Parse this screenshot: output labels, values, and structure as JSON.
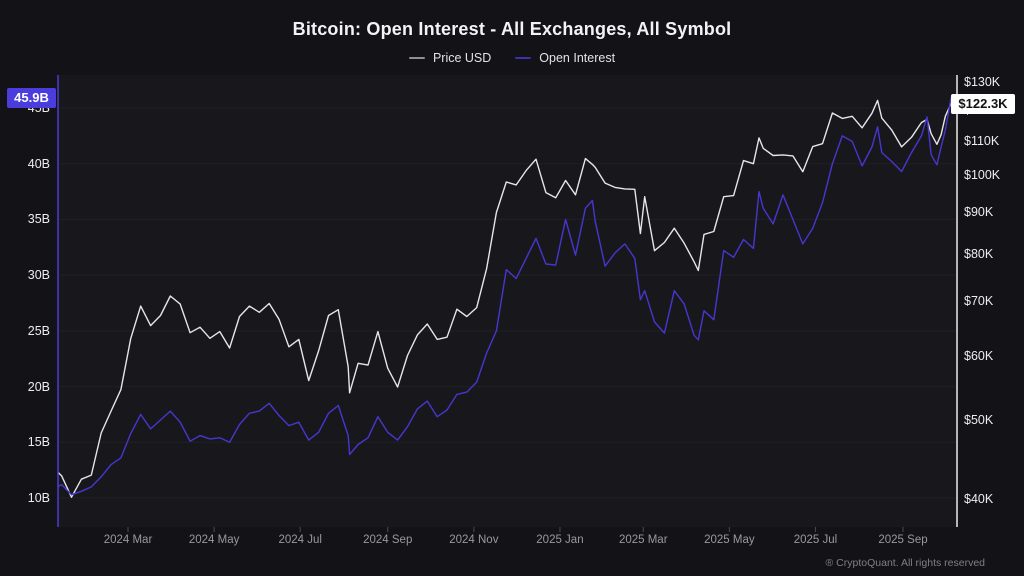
{
  "header": {
    "title": "Bitcoin: Open Interest - All Exchanges, All Symbol"
  },
  "legend": [
    {
      "label": "Price USD",
      "swatch_color": "#8f8f96"
    },
    {
      "label": "Open Interest",
      "swatch_color": "#3d32ad"
    }
  ],
  "watermark": "CryptoQuant",
  "footer": {
    "copyright": "® CryptoQuant. All rights reserved"
  },
  "badges": {
    "left": {
      "label": "45.9B",
      "value": 45.9,
      "bg": "#4a3ddb",
      "fg": "#ffffff"
    },
    "right": {
      "label": "$122.3K",
      "value": 122.3,
      "bg": "#ffffff",
      "fg": "#121215"
    }
  },
  "colors": {
    "background": "#131317",
    "plot_background": "#18181c",
    "gridline": "#1f1f24",
    "left_axis": "#4a3cd6",
    "right_axis": "#ebebee",
    "price_line": "#e6e6ea",
    "open_interest_line": "#4537cf"
  },
  "chart_data": {
    "type": "line",
    "title": "Bitcoin: Open Interest - All Exchanges, All Symbol",
    "legend_position": "top",
    "grid": "horizontal-faint",
    "x_range": [
      "2024-01-11",
      "2025-10-09"
    ],
    "x_axis": {
      "ticks": [
        {
          "label": "2024 Mar",
          "date": "2024-03-01"
        },
        {
          "label": "2024 May",
          "date": "2024-05-01"
        },
        {
          "label": "2024 Jul",
          "date": "2024-07-01"
        },
        {
          "label": "2024 Sep",
          "date": "2024-09-01"
        },
        {
          "label": "2024 Nov",
          "date": "2024-11-01"
        },
        {
          "label": "2025 Jan",
          "date": "2025-01-01"
        },
        {
          "label": "2025 Mar",
          "date": "2025-03-01"
        },
        {
          "label": "2025 May",
          "date": "2025-05-01"
        },
        {
          "label": "2025 Jul",
          "date": "2025-07-01"
        },
        {
          "label": "2025 Sep",
          "date": "2025-09-01"
        }
      ]
    },
    "y_left": {
      "name": "Open Interest",
      "unit": "billion USD",
      "scale": "linear",
      "range": [
        10,
        45
      ],
      "ticks": [
        {
          "label": "45B",
          "value": 45
        },
        {
          "label": "40B",
          "value": 40
        },
        {
          "label": "35B",
          "value": 35
        },
        {
          "label": "30B",
          "value": 30
        },
        {
          "label": "25B",
          "value": 25
        },
        {
          "label": "20B",
          "value": 20
        },
        {
          "label": "15B",
          "value": 15
        },
        {
          "label": "10B",
          "value": 10
        }
      ]
    },
    "y_right": {
      "name": "Price USD",
      "unit": "thousand USD",
      "scale": "log",
      "range": [
        40,
        130
      ],
      "ticks": [
        {
          "label": "$130K",
          "value": 130
        },
        {
          "label": "$120K",
          "value": 120
        },
        {
          "label": "$110K",
          "value": 110
        },
        {
          "label": "$100K",
          "value": 100
        },
        {
          "label": "$90K",
          "value": 90
        },
        {
          "label": "$80K",
          "value": 80
        },
        {
          "label": "$70K",
          "value": 70
        },
        {
          "label": "$60K",
          "value": 60
        },
        {
          "label": "$50K",
          "value": 50
        },
        {
          "label": "$40K",
          "value": 40
        }
      ]
    },
    "series": [
      {
        "name": "Price USD",
        "axis": "right",
        "color": "#e6e6ea",
        "unit": "K USD",
        "points": [
          [
            "2024-01-11",
            43.2
          ],
          [
            "2024-01-14",
            42.7
          ],
          [
            "2024-01-21",
            40.2
          ],
          [
            "2024-01-28",
            42.3
          ],
          [
            "2024-02-04",
            42.8
          ],
          [
            "2024-02-11",
            48.2
          ],
          [
            "2024-02-18",
            51.3
          ],
          [
            "2024-02-25",
            54.5
          ],
          [
            "2024-03-03",
            63.0
          ],
          [
            "2024-03-10",
            69.0
          ],
          [
            "2024-03-17",
            65.3
          ],
          [
            "2024-03-24",
            67.2
          ],
          [
            "2024-03-31",
            71.0
          ],
          [
            "2024-04-07",
            69.4
          ],
          [
            "2024-04-14",
            64.0
          ],
          [
            "2024-04-21",
            65.0
          ],
          [
            "2024-04-28",
            63.0
          ],
          [
            "2024-05-05",
            64.2
          ],
          [
            "2024-05-12",
            61.3
          ],
          [
            "2024-05-19",
            67.0
          ],
          [
            "2024-05-26",
            69.0
          ],
          [
            "2024-06-02",
            67.8
          ],
          [
            "2024-06-09",
            69.5
          ],
          [
            "2024-06-16",
            66.5
          ],
          [
            "2024-06-23",
            61.5
          ],
          [
            "2024-06-30",
            62.8
          ],
          [
            "2024-07-07",
            55.9
          ],
          [
            "2024-07-14",
            60.8
          ],
          [
            "2024-07-21",
            67.2
          ],
          [
            "2024-07-28",
            68.3
          ],
          [
            "2024-08-04",
            58.1
          ],
          [
            "2024-08-05",
            54.0
          ],
          [
            "2024-08-11",
            58.7
          ],
          [
            "2024-08-18",
            58.4
          ],
          [
            "2024-08-25",
            64.2
          ],
          [
            "2024-09-01",
            57.9
          ],
          [
            "2024-09-08",
            54.9
          ],
          [
            "2024-09-15",
            60.0
          ],
          [
            "2024-09-22",
            63.6
          ],
          [
            "2024-09-29",
            65.6
          ],
          [
            "2024-10-06",
            62.8
          ],
          [
            "2024-10-13",
            63.2
          ],
          [
            "2024-10-20",
            68.4
          ],
          [
            "2024-10-27",
            67.0
          ],
          [
            "2024-11-03",
            68.7
          ],
          [
            "2024-11-10",
            76.7
          ],
          [
            "2024-11-17",
            89.9
          ],
          [
            "2024-11-24",
            98.0
          ],
          [
            "2024-12-01",
            97.2
          ],
          [
            "2024-12-08",
            101.2
          ],
          [
            "2024-12-15",
            104.5
          ],
          [
            "2024-12-22",
            95.1
          ],
          [
            "2024-12-29",
            93.7
          ],
          [
            "2025-01-05",
            98.4
          ],
          [
            "2025-01-12",
            94.5
          ],
          [
            "2025-01-19",
            104.7
          ],
          [
            "2025-01-24",
            103.0
          ],
          [
            "2025-01-26",
            102.1
          ],
          [
            "2025-02-02",
            97.7
          ],
          [
            "2025-02-09",
            96.5
          ],
          [
            "2025-02-16",
            96.1
          ],
          [
            "2025-02-23",
            96.0
          ],
          [
            "2025-02-27",
            84.7
          ],
          [
            "2025-03-02",
            94.0
          ],
          [
            "2025-03-09",
            80.7
          ],
          [
            "2025-03-16",
            82.6
          ],
          [
            "2025-03-23",
            86.0
          ],
          [
            "2025-03-30",
            82.4
          ],
          [
            "2025-04-06",
            78.2
          ],
          [
            "2025-04-09",
            76.3
          ],
          [
            "2025-04-13",
            84.5
          ],
          [
            "2025-04-20",
            85.2
          ],
          [
            "2025-04-27",
            94.0
          ],
          [
            "2025-05-04",
            94.3
          ],
          [
            "2025-05-11",
            104.1
          ],
          [
            "2025-05-18",
            103.2
          ],
          [
            "2025-05-22",
            111.0
          ],
          [
            "2025-05-25",
            107.8
          ],
          [
            "2025-06-01",
            105.6
          ],
          [
            "2025-06-08",
            105.8
          ],
          [
            "2025-06-15",
            105.5
          ],
          [
            "2025-06-22",
            100.9
          ],
          [
            "2025-06-29",
            108.3
          ],
          [
            "2025-07-06",
            109.2
          ],
          [
            "2025-07-13",
            119.1
          ],
          [
            "2025-07-20",
            117.3
          ],
          [
            "2025-07-27",
            118.0
          ],
          [
            "2025-08-03",
            114.2
          ],
          [
            "2025-08-10",
            119.0
          ],
          [
            "2025-08-14",
            123.4
          ],
          [
            "2025-08-17",
            117.4
          ],
          [
            "2025-08-24",
            113.5
          ],
          [
            "2025-08-31",
            108.2
          ],
          [
            "2025-09-07",
            111.2
          ],
          [
            "2025-09-14",
            115.9
          ],
          [
            "2025-09-18",
            117.0
          ],
          [
            "2025-09-21",
            112.3
          ],
          [
            "2025-09-25",
            109.0
          ],
          [
            "2025-09-28",
            112.0
          ],
          [
            "2025-10-01",
            118.0
          ],
          [
            "2025-10-05",
            122.3
          ]
        ]
      },
      {
        "name": "Open Interest",
        "axis": "left",
        "color": "#4537cf",
        "unit": "B USD",
        "points": [
          [
            "2024-01-11",
            11.0
          ],
          [
            "2024-01-14",
            11.2
          ],
          [
            "2024-01-21",
            10.3
          ],
          [
            "2024-01-28",
            10.6
          ],
          [
            "2024-02-04",
            11.0
          ],
          [
            "2024-02-11",
            11.9
          ],
          [
            "2024-02-18",
            13.0
          ],
          [
            "2024-02-25",
            13.6
          ],
          [
            "2024-03-03",
            15.8
          ],
          [
            "2024-03-10",
            17.5
          ],
          [
            "2024-03-17",
            16.2
          ],
          [
            "2024-03-24",
            17.0
          ],
          [
            "2024-03-31",
            17.8
          ],
          [
            "2024-04-07",
            16.8
          ],
          [
            "2024-04-14",
            15.1
          ],
          [
            "2024-04-21",
            15.6
          ],
          [
            "2024-04-28",
            15.3
          ],
          [
            "2024-05-05",
            15.4
          ],
          [
            "2024-05-12",
            15.0
          ],
          [
            "2024-05-19",
            16.6
          ],
          [
            "2024-05-26",
            17.6
          ],
          [
            "2024-06-02",
            17.8
          ],
          [
            "2024-06-09",
            18.5
          ],
          [
            "2024-06-16",
            17.4
          ],
          [
            "2024-06-23",
            16.5
          ],
          [
            "2024-06-30",
            16.8
          ],
          [
            "2024-07-07",
            15.2
          ],
          [
            "2024-07-14",
            15.9
          ],
          [
            "2024-07-21",
            17.6
          ],
          [
            "2024-07-28",
            18.3
          ],
          [
            "2024-08-04",
            15.6
          ],
          [
            "2024-08-05",
            13.9
          ],
          [
            "2024-08-11",
            14.8
          ],
          [
            "2024-08-18",
            15.4
          ],
          [
            "2024-08-25",
            17.3
          ],
          [
            "2024-09-01",
            15.9
          ],
          [
            "2024-09-08",
            15.2
          ],
          [
            "2024-09-15",
            16.4
          ],
          [
            "2024-09-22",
            18.0
          ],
          [
            "2024-09-29",
            18.7
          ],
          [
            "2024-10-06",
            17.3
          ],
          [
            "2024-10-13",
            17.9
          ],
          [
            "2024-10-20",
            19.3
          ],
          [
            "2024-10-27",
            19.5
          ],
          [
            "2024-11-03",
            20.4
          ],
          [
            "2024-11-10",
            23.0
          ],
          [
            "2024-11-17",
            25.0
          ],
          [
            "2024-11-24",
            30.5
          ],
          [
            "2024-12-01",
            29.7
          ],
          [
            "2024-12-08",
            31.5
          ],
          [
            "2024-12-15",
            33.3
          ],
          [
            "2024-12-22",
            31.0
          ],
          [
            "2024-12-29",
            30.9
          ],
          [
            "2025-01-05",
            35.0
          ],
          [
            "2025-01-12",
            31.8
          ],
          [
            "2025-01-19",
            36.0
          ],
          [
            "2025-01-24",
            36.7
          ],
          [
            "2025-01-26",
            34.8
          ],
          [
            "2025-02-02",
            30.8
          ],
          [
            "2025-02-09",
            32.0
          ],
          [
            "2025-02-16",
            32.8
          ],
          [
            "2025-02-23",
            31.5
          ],
          [
            "2025-02-27",
            27.8
          ],
          [
            "2025-03-02",
            28.6
          ],
          [
            "2025-03-09",
            25.8
          ],
          [
            "2025-03-16",
            24.8
          ],
          [
            "2025-03-23",
            28.6
          ],
          [
            "2025-03-30",
            27.4
          ],
          [
            "2025-04-06",
            24.6
          ],
          [
            "2025-04-09",
            24.2
          ],
          [
            "2025-04-13",
            26.8
          ],
          [
            "2025-04-20",
            26.0
          ],
          [
            "2025-04-27",
            32.2
          ],
          [
            "2025-05-04",
            31.6
          ],
          [
            "2025-05-11",
            33.2
          ],
          [
            "2025-05-18",
            32.4
          ],
          [
            "2025-05-22",
            37.5
          ],
          [
            "2025-05-25",
            36.0
          ],
          [
            "2025-06-01",
            34.6
          ],
          [
            "2025-06-08",
            37.2
          ],
          [
            "2025-06-15",
            35.0
          ],
          [
            "2025-06-22",
            32.8
          ],
          [
            "2025-06-29",
            34.2
          ],
          [
            "2025-07-06",
            36.5
          ],
          [
            "2025-07-13",
            40.0
          ],
          [
            "2025-07-20",
            42.5
          ],
          [
            "2025-07-27",
            42.0
          ],
          [
            "2025-08-03",
            39.8
          ],
          [
            "2025-08-10",
            41.5
          ],
          [
            "2025-08-14",
            43.3
          ],
          [
            "2025-08-17",
            41.0
          ],
          [
            "2025-08-24",
            40.2
          ],
          [
            "2025-08-31",
            39.3
          ],
          [
            "2025-09-07",
            41.0
          ],
          [
            "2025-09-14",
            42.5
          ],
          [
            "2025-09-18",
            44.2
          ],
          [
            "2025-09-21",
            40.8
          ],
          [
            "2025-09-25",
            39.9
          ],
          [
            "2025-09-28",
            41.5
          ],
          [
            "2025-10-01",
            43.0
          ],
          [
            "2025-10-05",
            45.9
          ]
        ]
      }
    ]
  }
}
